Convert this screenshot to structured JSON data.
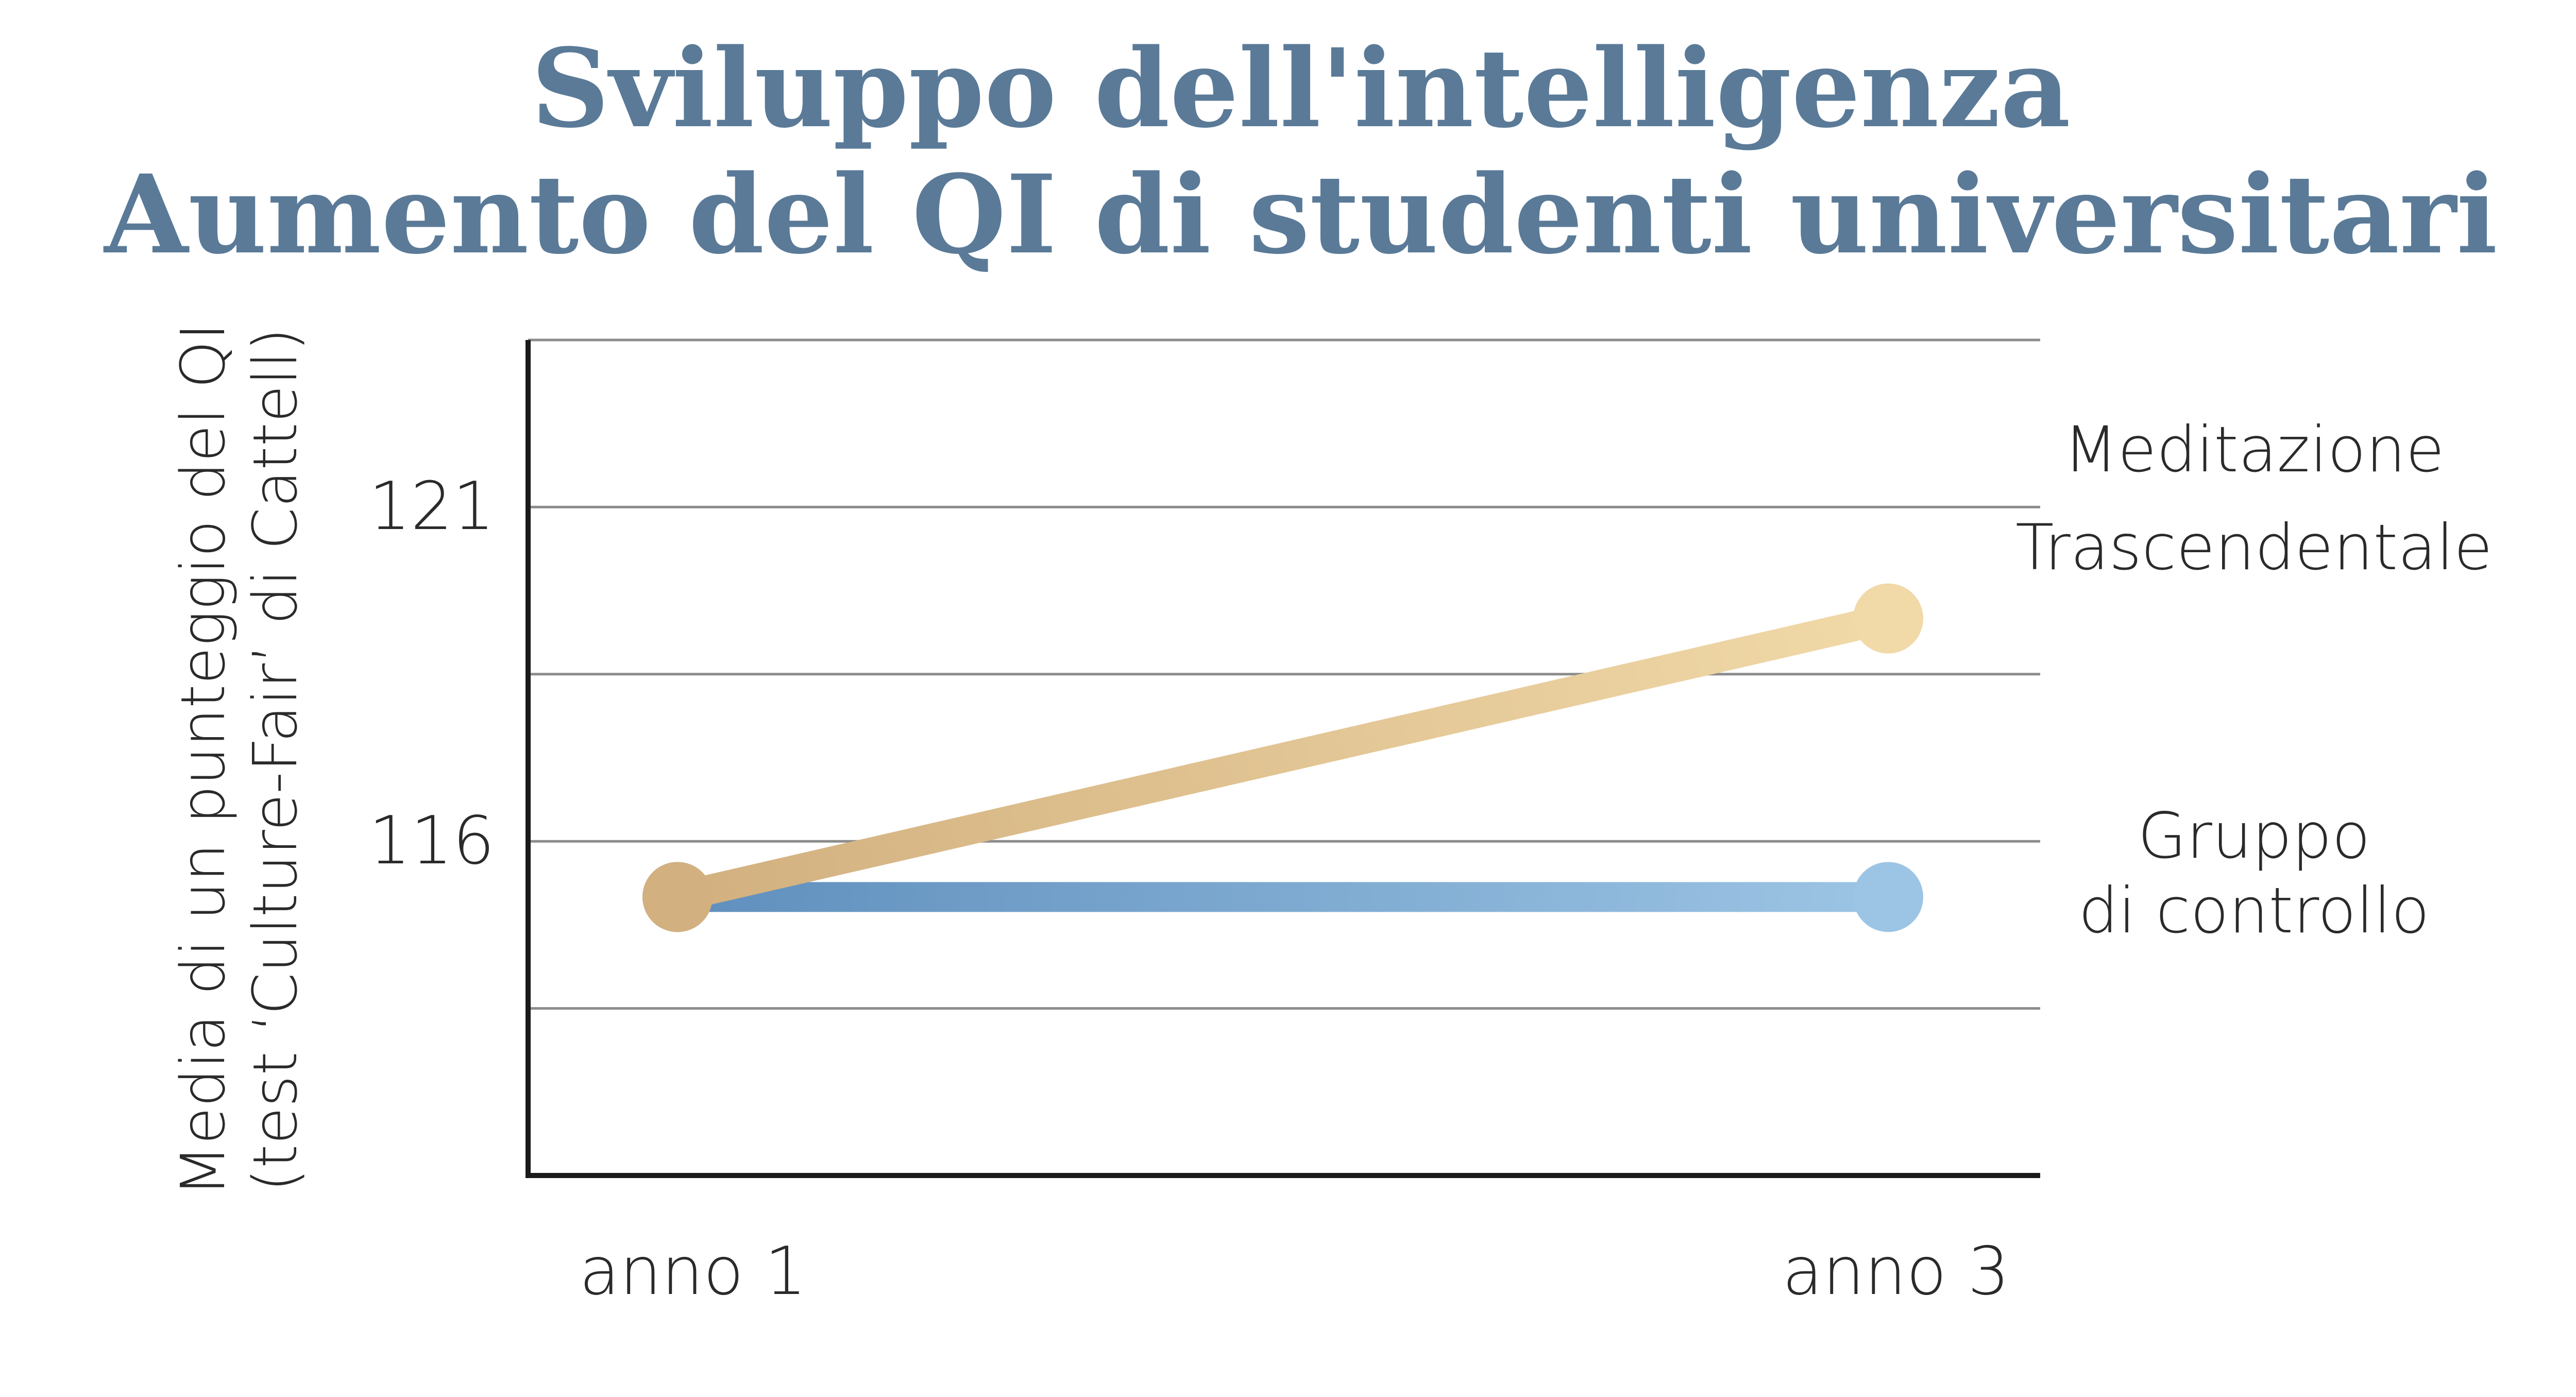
{
  "title_line1": "Sviluppo dell'intelligenza",
  "title_line2": "Aumento del QI di studenti universitari",
  "chart_data": {
    "type": "line",
    "title": "Sviluppo dell'intelligenza — Aumento del QI di studenti universitari",
    "ylabel_line1": "Media di un punteggio del QI",
    "ylabel_line2": "(test ‘Culture-Fair’ di Cattell)",
    "xlabel": "",
    "categories": [
      "anno 1",
      "anno 3"
    ],
    "ylim": [
      111,
      126
    ],
    "y_ticks": [
      121,
      116
    ],
    "y_tick_labels": [
      "121",
      "116"
    ],
    "grid": true,
    "legend": "right",
    "series": [
      {
        "name_line1": "Meditazione",
        "name_line2": "Trascendentale",
        "values": [
          116,
          121
        ],
        "color_start": "#d2b07f",
        "color_end": "#f1d9a8"
      },
      {
        "name_line1": "Gruppo",
        "name_line2": "di controllo",
        "values": [
          116,
          116
        ],
        "color_start": "#5f8fbd",
        "color_end": "#9cc4e4"
      }
    ]
  }
}
